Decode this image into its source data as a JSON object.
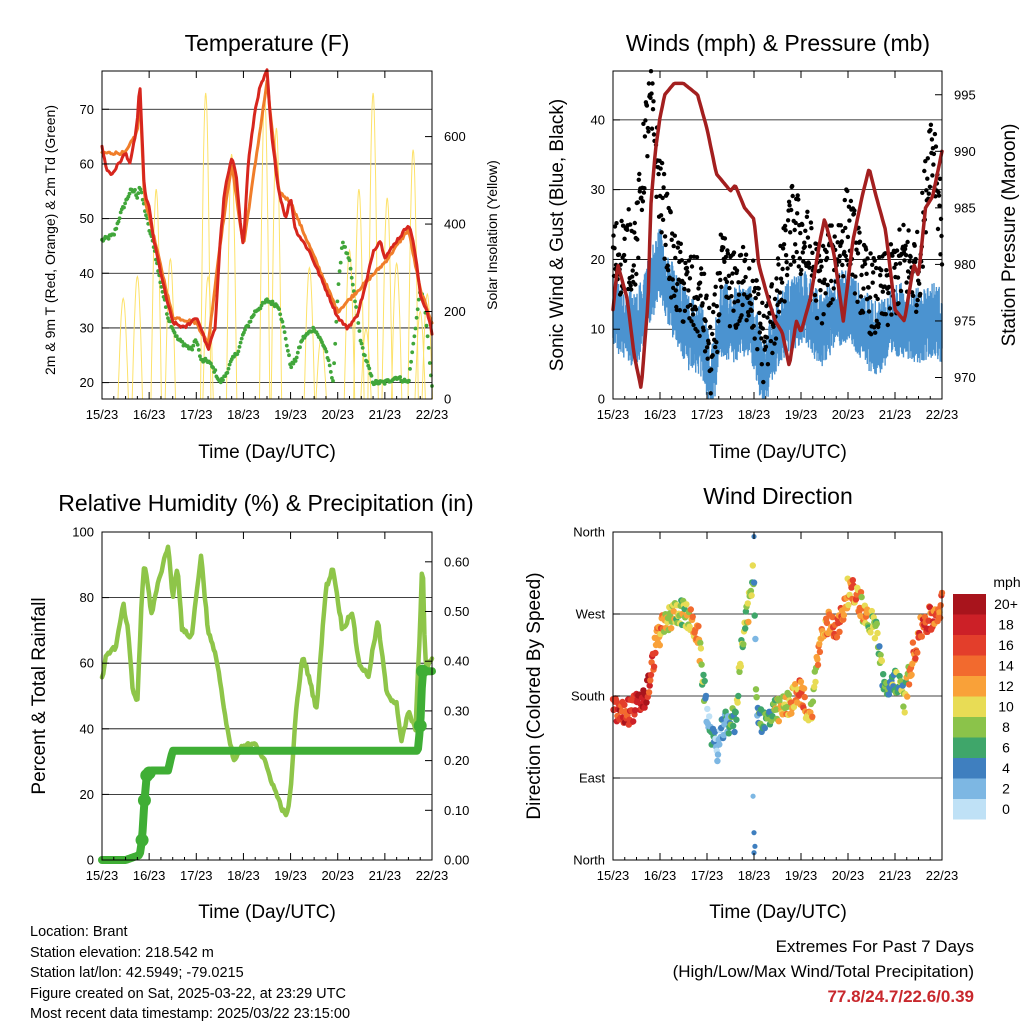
{
  "x_ticks": [
    "15/23",
    "16/23",
    "17/23",
    "18/23",
    "19/23",
    "20/23",
    "21/23",
    "22/23"
  ],
  "x_label": "Time (Day/UTC)",
  "colors": {
    "temp_2m": "#d7261e",
    "temp_9m": "#f07d2a",
    "dewpoint": "#41a63a",
    "insolation": "#fde26a",
    "wind": "#4b93d0",
    "gust": "#000000",
    "pressure": "#a31f1f",
    "rh": "#8ec549",
    "precip": "#3fae35",
    "extremes_text": "#c8282d"
  },
  "chart_data": [
    {
      "type": "line",
      "title": "Temperature (F)",
      "xlabel": "Time (Day/UTC)",
      "ylabel": "2m & 9m T (Red, Orange) & 2m Td (Green)",
      "y2label": "Solar Insolation (Yellow)",
      "x_unit": "days since 15/23",
      "ylim": [
        17,
        77
      ],
      "yticks": [
        "20",
        "30",
        "40",
        "50",
        "60",
        "70"
      ],
      "y2lim": [
        0,
        750
      ],
      "y2ticks": [
        "0",
        "200",
        "400",
        "600"
      ],
      "series": [
        {
          "name": "2m T",
          "axis": "left",
          "x": [
            0,
            0.1,
            0.2,
            0.35,
            0.5,
            0.6,
            0.7,
            0.75,
            0.8,
            0.9,
            1.0,
            1.1,
            1.25,
            1.35,
            1.5,
            1.75,
            2.0,
            2.1,
            2.25,
            2.4,
            2.5,
            2.6,
            2.75,
            2.85,
            2.95,
            3.0,
            3.1,
            3.25,
            3.35,
            3.5,
            3.6,
            3.75,
            3.9,
            4.0,
            4.1,
            4.25,
            4.4,
            4.6,
            4.8,
            5.0,
            5.2,
            5.4,
            5.6,
            5.75,
            5.9,
            6.0,
            6.1,
            6.25,
            6.35,
            6.5,
            6.6,
            6.7,
            6.75,
            6.8,
            6.9,
            7.0
          ],
          "y": [
            63,
            59,
            58,
            60,
            62,
            60,
            65,
            68,
            75,
            55,
            52,
            46,
            40,
            36,
            31,
            30,
            32,
            30,
            26,
            30,
            45,
            55,
            61,
            58,
            48,
            45,
            60,
            70,
            74,
            77,
            65,
            55,
            50,
            54,
            48,
            46,
            44,
            40,
            36,
            32,
            30,
            32,
            38,
            44,
            46,
            43,
            44,
            46,
            47,
            49,
            46,
            40,
            36,
            35,
            33,
            29
          ]
        },
        {
          "name": "9m T",
          "axis": "left",
          "x": [
            0,
            0.5,
            0.75,
            0.8,
            0.9,
            1.5,
            2.0,
            2.25,
            2.5,
            2.75,
            3.0,
            3.5,
            3.75,
            4.0,
            5.0,
            6.0,
            6.5,
            6.75,
            7.0
          ],
          "y": [
            62,
            62,
            66,
            73,
            54,
            32,
            31,
            27,
            45,
            60,
            45,
            75,
            55,
            53,
            33,
            42,
            48,
            37,
            31
          ]
        },
        {
          "name": "2m Td",
          "axis": "left",
          "x": [
            0,
            0.25,
            0.4,
            0.5,
            0.6,
            0.7,
            0.75,
            0.8,
            0.9,
            1.0,
            1.1,
            1.2,
            1.3,
            1.4,
            1.5,
            1.6,
            1.75,
            1.9,
            2.0,
            2.1,
            2.25,
            2.4,
            2.5,
            2.6,
            2.75,
            2.9,
            3.0,
            3.25,
            3.5,
            3.75,
            3.9,
            4.0,
            4.1,
            4.25,
            4.5,
            4.75,
            4.9,
            5.0,
            5.1,
            5.25,
            5.5,
            5.75,
            6.0,
            6.25,
            6.5,
            6.75,
            6.85,
            7.0
          ],
          "y": [
            46,
            47,
            51,
            53,
            55,
            55,
            54,
            56,
            52,
            48,
            45,
            40,
            36,
            32,
            30,
            28,
            27,
            26,
            28,
            24,
            24,
            22,
            20,
            21,
            24,
            26,
            29,
            33,
            35,
            34,
            28,
            23,
            24,
            28,
            30,
            26,
            20,
            36,
            46,
            42,
            27,
            20,
            20,
            21,
            20,
            37,
            34,
            19
          ]
        },
        {
          "name": "Solar Insolation",
          "axis": "right",
          "peak_times": [
            0.45,
            0.75,
            1.15,
            1.45,
            2.2,
            2.25,
            2.75,
            3.45,
            3.7,
            4.4,
            4.65,
            5.25,
            5.45,
            5.6,
            5.75,
            6.05,
            6.25,
            6.6,
            6.75,
            6.9
          ],
          "peak_values": [
            230,
            280,
            480,
            320,
            700,
            280,
            560,
            690,
            620,
            300,
            140,
            340,
            480,
            160,
            700,
            460,
            310,
            570,
            200,
            240
          ]
        }
      ]
    },
    {
      "type": "scatter",
      "title": "Winds (mph) & Pressure (mb)",
      "xlabel": "Time (Day/UTC)",
      "ylabel": "Sonic Wind & Gust (Blue, Black)",
      "y2label": "Station Pressure (Maroon)",
      "x_unit": "days since 15/23",
      "ylim": [
        0,
        47
      ],
      "yticks": [
        "0",
        "10",
        "20",
        "30",
        "40"
      ],
      "y2lim": [
        968.1,
        997.1
      ],
      "y2ticks": [
        "970",
        "975",
        "980",
        "985",
        "990",
        "995"
      ],
      "series": [
        {
          "name": "Sonic Wind",
          "type": "line",
          "x": [
            0,
            0.5,
            0.7,
            1.0,
            1.3,
            1.6,
            1.9,
            2.1,
            2.3,
            2.6,
            2.9,
            3.2,
            3.5,
            3.8,
            4.1,
            4.4,
            4.7,
            5.0,
            5.3,
            5.6,
            5.9,
            6.2,
            6.5,
            6.8,
            7.0
          ],
          "y": [
            13,
            10,
            15,
            20,
            14,
            10,
            9,
            3,
            12,
            11,
            12,
            4,
            10,
            13,
            14,
            10,
            13,
            14,
            11,
            9,
            11,
            12,
            11,
            12,
            11
          ]
        },
        {
          "name": "Gust",
          "type": "scatter",
          "x": [
            0,
            0.5,
            0.7,
            0.8,
            1.0,
            1.3,
            1.6,
            1.9,
            2.1,
            2.3,
            2.6,
            2.9,
            3.2,
            3.5,
            3.8,
            4.1,
            4.4,
            4.7,
            5.0,
            5.3,
            5.6,
            5.9,
            6.2,
            6.5,
            6.75,
            6.85,
            7.0
          ],
          "y": [
            20,
            22,
            38,
            42,
            30,
            18,
            15,
            14,
            5,
            18,
            15,
            17,
            8,
            14,
            25,
            22,
            16,
            20,
            25,
            17,
            14,
            16,
            20,
            18,
            37,
            35,
            24
          ]
        },
        {
          "name": "Station Pressure",
          "type": "line",
          "x": [
            0,
            0.1,
            0.3,
            0.45,
            0.6,
            0.75,
            0.8,
            0.9,
            1.0,
            1.1,
            1.2,
            1.3,
            1.5,
            1.8,
            2.0,
            2.2,
            2.4,
            2.5,
            2.6,
            2.8,
            3.0,
            3.1,
            3.3,
            3.45,
            3.6,
            3.75,
            3.9,
            4.0,
            4.2,
            4.4,
            4.5,
            4.7,
            4.9,
            5.1,
            5.3,
            5.45,
            5.6,
            5.8,
            6.0,
            6.2,
            6.4,
            6.5,
            6.65,
            6.8,
            7.0
          ],
          "y": [
            976,
            980,
            977,
            972,
            969,
            977,
            985,
            990,
            993,
            995,
            995.5,
            996,
            996,
            995,
            992,
            988,
            987,
            986.5,
            987,
            985,
            984,
            980,
            977,
            975,
            974,
            971,
            975,
            974,
            977,
            982,
            984,
            981,
            975,
            982,
            986,
            988.5,
            986,
            983,
            976,
            975,
            980,
            979,
            985,
            986,
            990
          ]
        }
      ]
    },
    {
      "type": "line",
      "title": "Relative Humidity (%) & Precipitation (in)",
      "xlabel": "Time (Day/UTC)",
      "ylabel": "Percent & Total Rainfall",
      "x_unit": "days since 15/23",
      "ylim": [
        0,
        100
      ],
      "yticks": [
        "0",
        "20",
        "40",
        "60",
        "80",
        "100"
      ],
      "y2lim": [
        0,
        0.66
      ],
      "y2ticks": [
        "0.00",
        "0.10",
        "0.20",
        "0.30",
        "0.40",
        "0.50",
        "0.60"
      ],
      "series": [
        {
          "name": "Relative Humidity",
          "axis": "left",
          "x": [
            0,
            0.1,
            0.3,
            0.45,
            0.55,
            0.65,
            0.75,
            0.85,
            0.9,
            0.95,
            1.05,
            1.2,
            1.4,
            1.5,
            1.6,
            1.7,
            1.9,
            2.1,
            2.25,
            2.45,
            2.65,
            2.8,
            2.95,
            3.1,
            3.25,
            3.45,
            3.7,
            3.9,
            4.0,
            4.1,
            4.25,
            4.35,
            4.55,
            4.75,
            4.9,
            5.1,
            5.3,
            5.45,
            5.65,
            5.85,
            6.05,
            6.25,
            6.35,
            6.5,
            6.65,
            6.75,
            6.8,
            6.85,
            6.9,
            7.0
          ],
          "y": [
            55,
            63,
            65,
            78,
            70,
            52,
            48,
            82,
            90,
            86,
            75,
            85,
            96,
            80,
            90,
            70,
            68,
            93,
            70,
            60,
            40,
            30,
            34,
            35,
            36,
            30,
            20,
            13,
            20,
            43,
            62,
            58,
            46,
            83,
            89,
            70,
            76,
            60,
            56,
            73,
            50,
            48,
            36,
            45,
            40,
            72,
            94,
            62,
            58,
            62
          ]
        },
        {
          "name": "Total Precipitation",
          "axis": "right",
          "x": [
            0,
            0.5,
            0.8,
            0.85,
            0.9,
            0.95,
            1.05,
            1.2,
            1.4,
            1.5,
            2.0,
            3.0,
            4.0,
            5.0,
            6.0,
            6.7,
            6.75,
            6.8,
            6.85,
            7.0
          ],
          "y": [
            0,
            0,
            0.01,
            0.04,
            0.12,
            0.17,
            0.18,
            0.18,
            0.18,
            0.22,
            0.22,
            0.22,
            0.22,
            0.22,
            0.22,
            0.22,
            0.27,
            0.38,
            0.38,
            0.38
          ]
        }
      ]
    },
    {
      "type": "scatter",
      "title": "Wind Direction",
      "xlabel": "Time (Day/UTC)",
      "ylabel": "Direction (Colored By Speed)",
      "x_unit": "days since 15/23",
      "ylim": [
        0,
        360
      ],
      "yticks": [
        "North",
        "East",
        "South",
        "West",
        "North"
      ],
      "colorbar": {
        "unit": "mph",
        "labels": [
          "20+",
          "18",
          "16",
          "14",
          "12",
          "10",
          "8",
          "6",
          "4",
          "2",
          "0"
        ],
        "colors": [
          "#a8141c",
          "#cc2027",
          "#e33e2b",
          "#f26a2e",
          "#f9a139",
          "#e8dc55",
          "#8bc34a",
          "#3fa66a",
          "#3f7fbf",
          "#7db7e3",
          "#bfe1f6"
        ]
      },
      "series": [
        {
          "name": "Wind Direction",
          "x": [
            0,
            0.2,
            0.4,
            0.55,
            0.7,
            0.8,
            0.9,
            1.0,
            1.2,
            1.4,
            1.6,
            1.8,
            2.0,
            2.1,
            2.2,
            2.35,
            2.5,
            2.6,
            2.75,
            2.9,
            3.0,
            3.05,
            3.2,
            3.4,
            3.6,
            3.8,
            4.0,
            4.2,
            4.4,
            4.6,
            4.8,
            5.0,
            5.2,
            5.4,
            5.6,
            5.8,
            6.0,
            6.2,
            6.4,
            6.6,
            6.8,
            7.0
          ],
          "y": [
            165,
            160,
            165,
            170,
            180,
            200,
            235,
            250,
            265,
            275,
            265,
            250,
            160,
            140,
            120,
            145,
            155,
            150,
            245,
            280,
            320,
            170,
            150,
            160,
            165,
            175,
            185,
            155,
            240,
            260,
            255,
            295,
            290,
            265,
            255,
            180,
            200,
            175,
            230,
            260,
            265,
            280
          ],
          "speed": [
            18,
            17,
            17,
            18,
            20,
            16,
            14,
            13,
            10,
            8,
            10,
            12,
            4,
            3,
            2,
            4,
            5,
            6,
            8,
            9,
            7,
            4,
            5,
            8,
            10,
            12,
            14,
            10,
            12,
            14,
            15,
            13,
            12,
            10,
            8,
            6,
            7,
            8,
            14,
            16,
            15,
            12
          ]
        }
      ]
    }
  ],
  "info": {
    "location": "Location: Brant",
    "elevation": "Station elevation: 218.542 m",
    "latlon": "Station lat/lon: 42.5949; -79.0215",
    "created": "Figure created on Sat, 2025-03-22, at 23:29 UTC",
    "recent": "Most recent data timestamp: 2025/03/22 23:15:00"
  },
  "extremes": {
    "title": "Extremes For Past 7 Days",
    "subtitle": "(High/Low/Max Wind/Total Precipitation)",
    "values": "77.8/24.7/22.6/0.39"
  }
}
